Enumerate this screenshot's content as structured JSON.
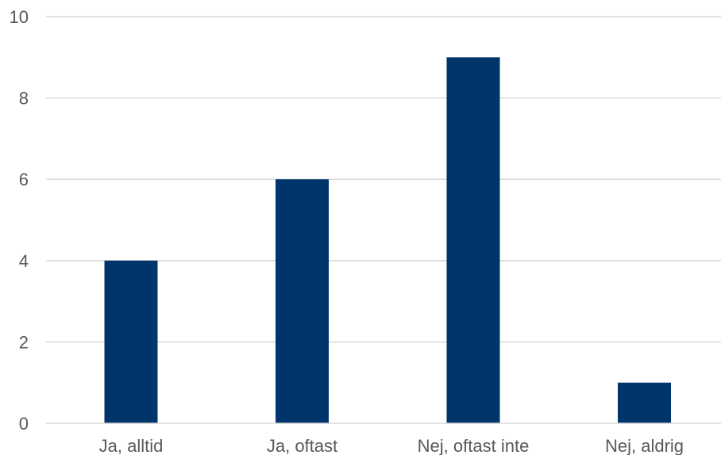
{
  "chart_data": {
    "type": "bar",
    "title": "",
    "xlabel": "",
    "ylabel": "",
    "categories": [
      "Ja, alltid",
      "Ja, oftast",
      "Nej, oftast inte",
      "Nej, aldrig"
    ],
    "values": [
      4,
      6,
      9,
      1
    ],
    "ylim": [
      0,
      10
    ],
    "yticks": [
      0,
      2,
      4,
      6,
      8,
      10
    ],
    "ytick_labels": [
      "0",
      "2",
      "4",
      "6",
      "8",
      "10"
    ],
    "grid": true,
    "legend": "none",
    "bar_color": "#00356B"
  }
}
